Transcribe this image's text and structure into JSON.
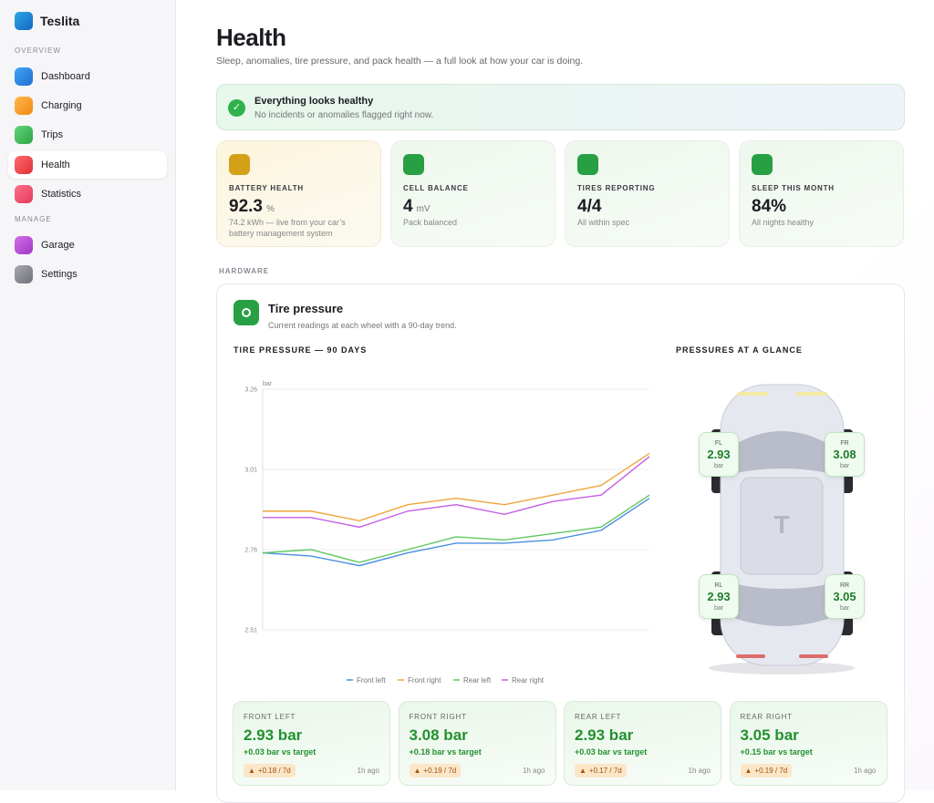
{
  "sidebar": {
    "brand": "Teslita",
    "active": "Health",
    "sections": [
      {
        "title": "OVERVIEW",
        "items": [
          "Dashboard",
          "Charging",
          "Trips",
          "Health",
          "Statistics"
        ]
      },
      {
        "title": "MANAGE",
        "items": [
          "Garage",
          "Settings"
        ]
      }
    ]
  },
  "header": {
    "title": "Health",
    "subtitle": "Sleep, anomalies, tire pressure, and pack health — a full look at how your car is doing."
  },
  "banner": {
    "title": "Everything looks healthy",
    "text": "No incidents or anomalies flagged right now."
  },
  "stats": [
    {
      "label": "BATTERY HEALTH",
      "value": "92.3",
      "unit": "%",
      "note": "74.2 kWh — live from your car’s battery management system"
    },
    {
      "label": "CELL BALANCE",
      "value": "4",
      "unit": "mV",
      "note": "Pack balanced"
    },
    {
      "label": "TIRES REPORTING",
      "value": "4/4",
      "note": "All within spec"
    },
    {
      "label": "SLEEP THIS MONTH",
      "value": "84%",
      "note": "All nights healthy"
    }
  ],
  "section": "HARDWARE",
  "panel": {
    "title": "Tire pressure",
    "subtitle": "Current readings at each wheel with a 90-day trend."
  },
  "chart_data": {
    "type": "line",
    "title": "TIRE PRESSURE — 90 DAYS",
    "y_label": "bar",
    "ylim": [
      2.51,
      3.26
    ],
    "yticks": [
      2.51,
      2.76,
      3.01,
      3.26
    ],
    "grid": true,
    "series": [
      {
        "name": "Front left",
        "color": "#4a8fe0",
        "values": [
          2.75,
          2.74,
          2.71,
          2.75,
          2.78,
          2.78,
          2.79,
          2.82,
          2.92
        ]
      },
      {
        "name": "Front right",
        "color": "#f0a53c",
        "values": [
          2.88,
          2.88,
          2.85,
          2.9,
          2.92,
          2.9,
          2.93,
          2.96,
          3.06
        ]
      },
      {
        "name": "Rear left",
        "color": "#5ec860",
        "values": [
          2.75,
          2.76,
          2.72,
          2.76,
          2.8,
          2.79,
          2.81,
          2.83,
          2.93
        ]
      },
      {
        "name": "Rear right",
        "color": "#c55de6",
        "values": [
          2.86,
          2.86,
          2.83,
          2.88,
          2.9,
          2.87,
          2.91,
          2.93,
          3.05
        ]
      }
    ]
  },
  "glance": {
    "title": "PRESSURES AT A GLANCE",
    "logo": "T",
    "unit": "bar",
    "wheels": [
      {
        "position": "FL",
        "value": 2.93
      },
      {
        "position": "FR",
        "value": 3.08
      },
      {
        "position": "RL",
        "value": 2.93
      },
      {
        "position": "RR",
        "value": 3.05
      }
    ]
  },
  "tires": [
    {
      "name": "FRONT LEFT",
      "value": "2.93 bar",
      "delta": "+0.03 bar vs target",
      "trend": "+0.18 / 7d",
      "updated": "1h ago"
    },
    {
      "name": "FRONT RIGHT",
      "value": "3.08 bar",
      "delta": "+0.18 bar vs target",
      "trend": "+0.19 / 7d",
      "updated": "1h ago"
    },
    {
      "name": "REAR LEFT",
      "value": "2.93 bar",
      "delta": "+0.03 bar vs target",
      "trend": "+0.17 / 7d",
      "updated": "1h ago"
    },
    {
      "name": "REAR RIGHT",
      "value": "3.05 bar",
      "delta": "+0.15 bar vs target",
      "trend": "+0.19 / 7d",
      "updated": "1h ago"
    }
  ]
}
